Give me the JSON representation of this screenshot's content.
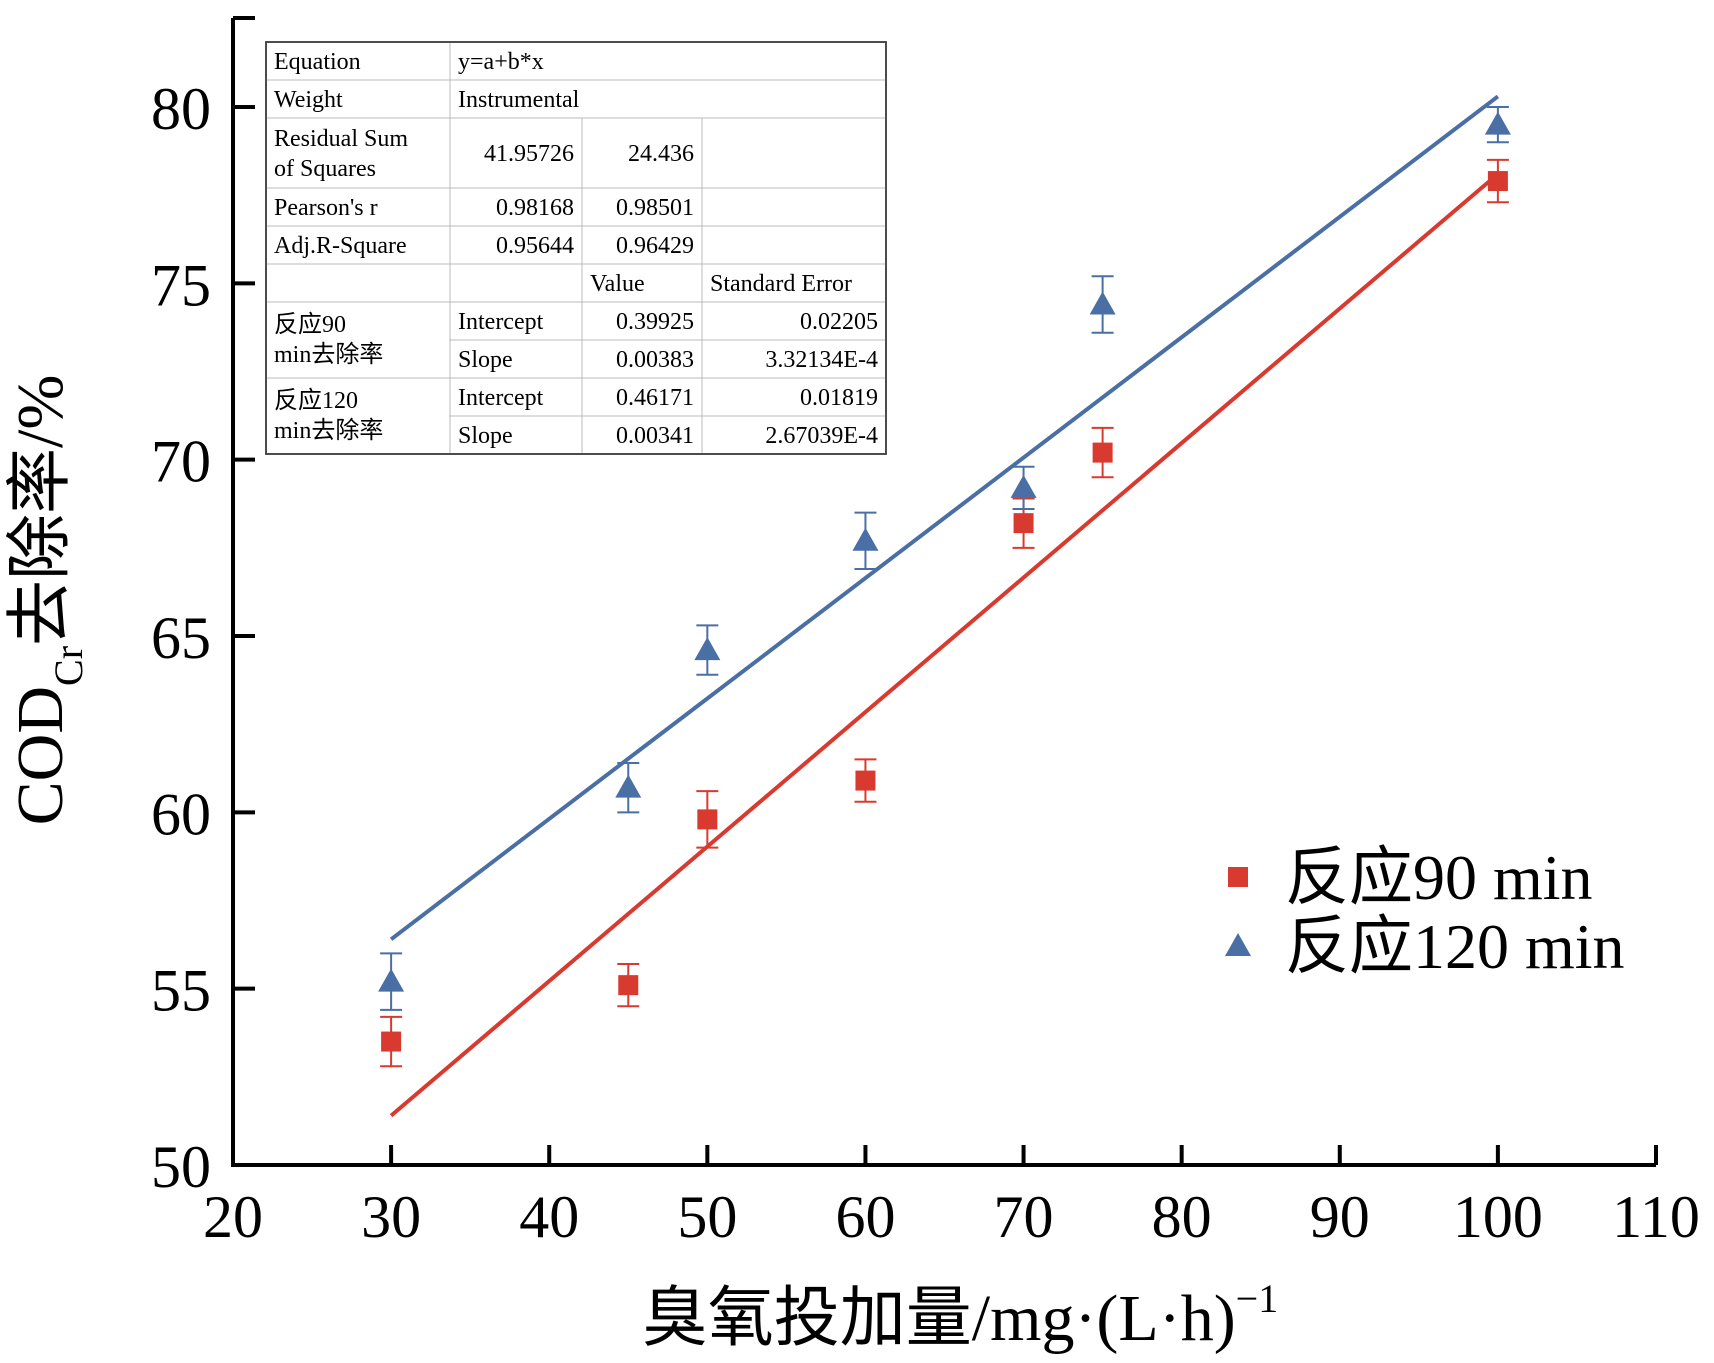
{
  "chart_data": {
    "type": "scatter",
    "xlabel": "臭氧投加量/mg·(L·h)",
    "xlabel_sup": "−1",
    "ylabel_prefix": "COD",
    "ylabel_sub": "Cr",
    "ylabel_suffix": "去除率/%",
    "xlim": [
      20,
      110
    ],
    "ylim": [
      50,
      82
    ],
    "x_ticks": [
      20,
      30,
      40,
      50,
      60,
      70,
      80,
      90,
      100,
      110
    ],
    "y_ticks": [
      50,
      55,
      60,
      65,
      70,
      75,
      80
    ],
    "legend_position": "bottom-right",
    "series": [
      {
        "name": "反应90 min",
        "marker": "square",
        "color": "#d93a2f",
        "points": [
          {
            "x": 30,
            "y": 53.5,
            "err": 0.7
          },
          {
            "x": 45,
            "y": 55.1,
            "err": 0.6
          },
          {
            "x": 50,
            "y": 59.8,
            "err": 0.8
          },
          {
            "x": 60,
            "y": 60.9,
            "err": 0.6
          },
          {
            "x": 70,
            "y": 68.2,
            "err": 0.7
          },
          {
            "x": 75,
            "y": 70.2,
            "err": 0.7
          },
          {
            "x": 100,
            "y": 77.9,
            "err": 0.6
          }
        ],
        "fit_line": {
          "x": [
            30,
            100
          ],
          "y": [
            51.4,
            78.1
          ]
        }
      },
      {
        "name": "反应120 min",
        "marker": "triangle",
        "color": "#4a6fa5",
        "points": [
          {
            "x": 30,
            "y": 55.2,
            "err": 0.8
          },
          {
            "x": 45,
            "y": 60.7,
            "err": 0.7
          },
          {
            "x": 50,
            "y": 64.6,
            "err": 0.7
          },
          {
            "x": 60,
            "y": 67.7,
            "err": 0.8
          },
          {
            "x": 70,
            "y": 69.2,
            "err": 0.6
          },
          {
            "x": 75,
            "y": 74.4,
            "err": 0.8
          },
          {
            "x": 100,
            "y": 79.5,
            "err": 0.5
          }
        ],
        "fit_line": {
          "x": [
            30,
            100
          ],
          "y": [
            56.4,
            80.3
          ]
        }
      }
    ],
    "stats_table": {
      "rows": [
        [
          "Equation",
          "y=a+b*x",
          "",
          ""
        ],
        [
          "Weight",
          "Instrumental",
          "",
          ""
        ],
        [
          "Residual Sum of Squares",
          "41.95726",
          "24.436",
          ""
        ],
        [
          "Pearson's r",
          "0.98168",
          "0.98501",
          ""
        ],
        [
          "Adj.R-Square",
          "0.95644",
          "0.96429",
          ""
        ],
        [
          "",
          "",
          "Value",
          "Standard Error"
        ],
        [
          "反应90 min去除率",
          "Intercept",
          "0.39925",
          "0.02205"
        ],
        [
          "",
          "Slope",
          "0.00383",
          "3.32134E-4"
        ],
        [
          "反应120 min去除率",
          "Intercept",
          "0.46171",
          "0.01819"
        ],
        [
          "",
          "Slope",
          "0.00341",
          "2.67039E-4"
        ]
      ]
    }
  }
}
